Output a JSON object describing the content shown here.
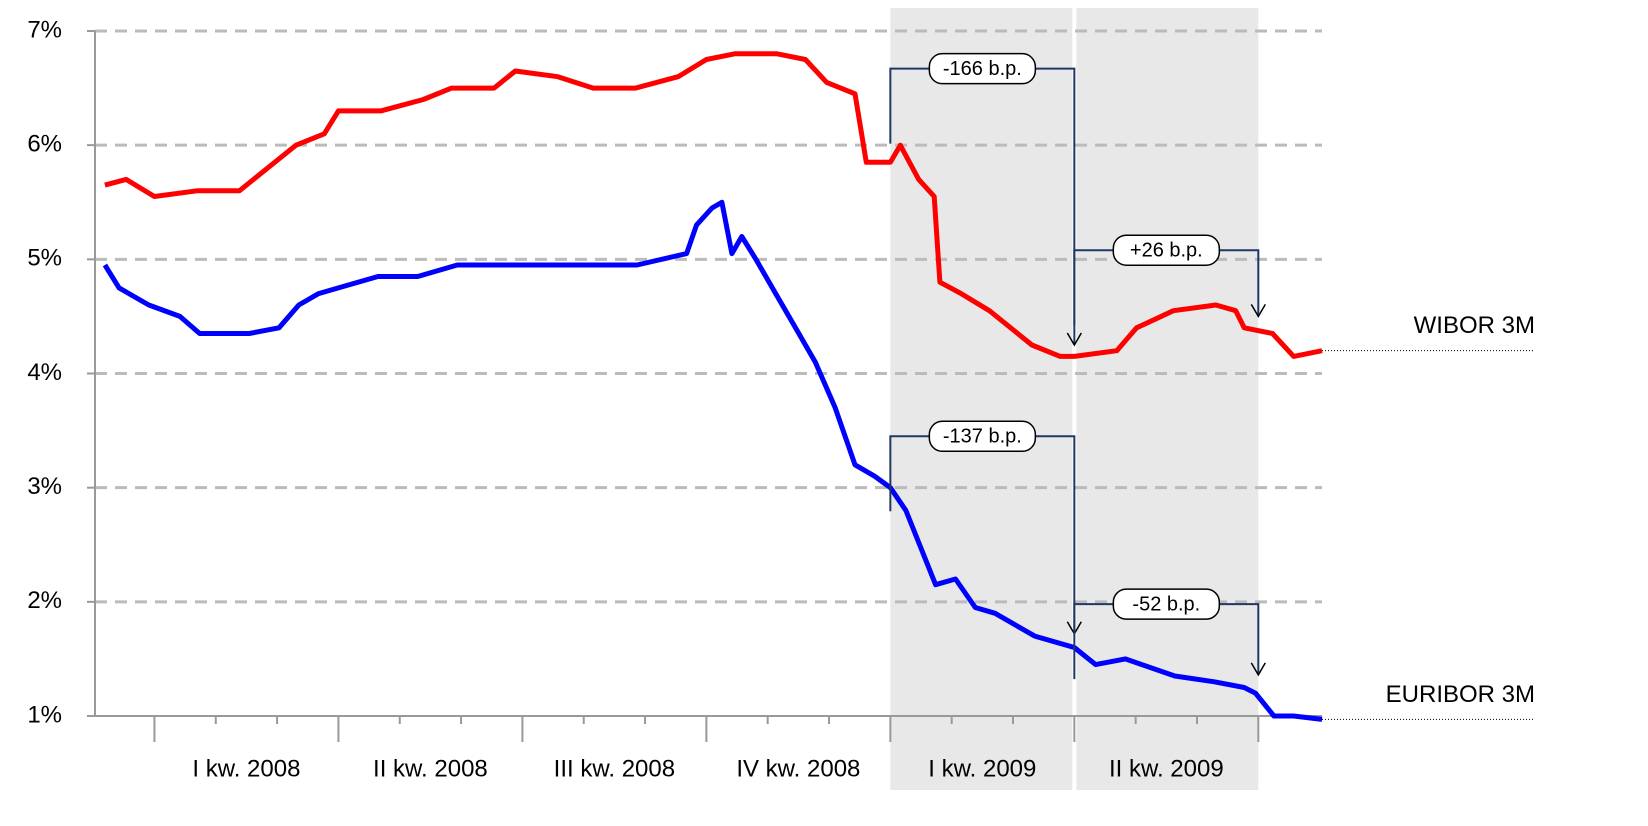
{
  "chart_data": {
    "type": "line",
    "series": [
      {
        "name": "WIBOR 3M",
        "color": "#ff0000",
        "x": [
          -3.5,
          -2,
          0,
          3,
          6,
          7.5,
          10,
          12,
          13,
          16,
          19,
          21,
          24,
          25.5,
          28.5,
          31,
          34,
          37,
          39,
          41,
          44,
          46,
          47.5,
          49.5,
          50.3,
          52,
          52.7,
          54,
          55.1,
          55.5,
          57,
          59,
          62,
          64,
          65,
          68,
          69.4,
          72,
          75,
          76.4,
          77,
          79,
          80.5,
          82.5
        ],
        "values": [
          5.65,
          5.7,
          5.55,
          5.6,
          5.6,
          5.75,
          6.0,
          6.1,
          6.3,
          6.3,
          6.4,
          6.5,
          6.5,
          6.65,
          6.6,
          6.5,
          6.5,
          6.6,
          6.75,
          6.8,
          6.8,
          6.75,
          6.55,
          6.45,
          5.85,
          5.85,
          6.0,
          5.7,
          5.55,
          4.8,
          4.7,
          4.55,
          4.25,
          4.15,
          4.15,
          4.2,
          4.4,
          4.55,
          4.6,
          4.55,
          4.4,
          4.35,
          4.15,
          4.2
        ]
      },
      {
        "name": "EURIBOR 3M",
        "color": "#0000ff",
        "x": [
          -3.5,
          -2.5,
          -0.4,
          1.8,
          3.2,
          6.7,
          8.8,
          10.2,
          11.6,
          13,
          15.8,
          18.6,
          21.4,
          24.2,
          28.5,
          34.1,
          37.6,
          38.3,
          39.4,
          40.1,
          40.8,
          41.5,
          42.5,
          43.9,
          45.3,
          46.7,
          48.1,
          49.5,
          50.9,
          52,
          53.1,
          55.2,
          56.6,
          58,
          59.4,
          62.2,
          65,
          66.5,
          68.6,
          72.1,
          74.9,
          77,
          77.8,
          79.1,
          80.5,
          82.5
        ],
        "values": [
          4.95,
          4.75,
          4.6,
          4.5,
          4.35,
          4.35,
          4.4,
          4.6,
          4.7,
          4.75,
          4.85,
          4.85,
          4.95,
          4.95,
          4.95,
          4.95,
          5.05,
          5.3,
          5.45,
          5.5,
          5.05,
          5.2,
          5.0,
          4.7,
          4.4,
          4.1,
          3.7,
          3.2,
          3.1,
          3.0,
          2.8,
          2.15,
          2.2,
          1.95,
          1.9,
          1.7,
          1.6,
          1.45,
          1.5,
          1.35,
          1.3,
          1.25,
          1.2,
          1.0,
          1.0,
          0.97
        ]
      }
    ],
    "xlim": [
      -4.2,
      82.5
    ],
    "xticks": [
      0,
      13,
      26,
      39,
      52,
      65,
      78
    ],
    "xlabels": [
      {
        "value": 6.5,
        "label": "I kw. 2008"
      },
      {
        "value": 19.5,
        "label": "II kw. 2008"
      },
      {
        "value": 32.5,
        "label": "III kw. 2008"
      },
      {
        "value": 45.5,
        "label": "IV kw. 2008"
      },
      {
        "value": 58.5,
        "label": "I kw. 2009"
      },
      {
        "value": 71.5,
        "label": "II kw. 2009"
      }
    ],
    "ylim": [
      1,
      7
    ],
    "yticks": [
      {
        "value": 1,
        "label": "1%"
      },
      {
        "value": 2,
        "label": "2%"
      },
      {
        "value": 3,
        "label": "3%"
      },
      {
        "value": 4,
        "label": "4%"
      },
      {
        "value": 5,
        "label": "5%"
      },
      {
        "value": 6,
        "label": "6%"
      },
      {
        "value": 7,
        "label": "7%"
      }
    ],
    "grid": true,
    "annotations": [
      {
        "text": "-166 b.p."
      },
      {
        "text": "+26 b.p."
      },
      {
        "text": "-137 b.p."
      },
      {
        "text": "-52 b.p."
      }
    ]
  }
}
